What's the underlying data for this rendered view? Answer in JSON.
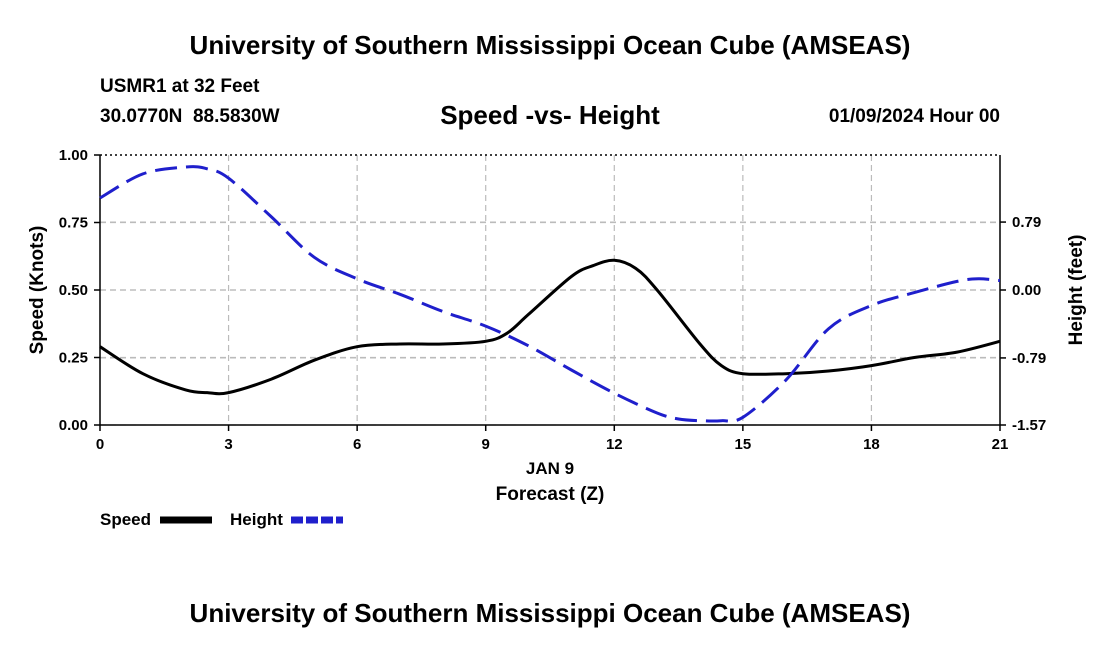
{
  "header": {
    "title": "University of Southern Mississippi Ocean Cube (AMSEAS)",
    "station": "USMR1 at 32 Feet",
    "coords": "30.0770N  88.5830W",
    "subtitle": "Speed -vs- Height",
    "datetime": "01/09/2024 Hour 00"
  },
  "footer": {
    "title": "University of Southern Mississippi Ocean Cube (AMSEAS)"
  },
  "colors": {
    "speed": "#000000",
    "height": "#1f1fcc",
    "grid": "#bbbbbb"
  },
  "chart_data": {
    "type": "line",
    "title": "Speed -vs- Height",
    "xlabel": "Forecast (Z)",
    "xsublabel": "JAN 9",
    "ylabel_left": "Speed (Knots)",
    "ylabel_right": "Height (feet)",
    "xlim": [
      0,
      21
    ],
    "ylim_left": [
      0,
      1
    ],
    "ylim_right": [
      -1.57,
      1.57
    ],
    "x_ticks": [
      0,
      3,
      6,
      9,
      12,
      15,
      18,
      21
    ],
    "x_tick_labels": [
      "0",
      "3",
      "6",
      "9",
      "12",
      "15",
      "18",
      "21"
    ],
    "y_left_ticks": [
      0,
      0.25,
      0.5,
      0.75,
      1.0
    ],
    "y_left_tick_labels": [
      "0.00",
      "0.25",
      "0.50",
      "0.75",
      "1.00"
    ],
    "y_right_ticks": [
      -1.57,
      -0.79,
      0.0,
      0.79
    ],
    "y_right_tick_labels": [
      "-1.57",
      "-0.79",
      "0.00",
      "0.79"
    ],
    "grid": true,
    "legend": [
      "Speed",
      "Height"
    ],
    "series": [
      {
        "name": "Speed",
        "axis": "left",
        "style": "solid",
        "x": [
          0,
          1,
          2,
          2.5,
          3,
          4,
          5,
          6,
          7,
          8,
          9,
          9.5,
          10,
          11,
          11.5,
          12,
          12.5,
          13,
          14,
          14.5,
          15,
          16,
          17,
          18,
          19,
          20,
          21
        ],
        "values": [
          0.29,
          0.19,
          0.13,
          0.12,
          0.12,
          0.17,
          0.24,
          0.29,
          0.3,
          0.3,
          0.31,
          0.34,
          0.41,
          0.55,
          0.59,
          0.61,
          0.58,
          0.5,
          0.3,
          0.22,
          0.19,
          0.19,
          0.2,
          0.22,
          0.25,
          0.27,
          0.31
        ]
      },
      {
        "name": "Height",
        "axis": "right",
        "style": "dashed",
        "x": [
          0,
          1,
          2,
          2.5,
          3,
          4,
          5,
          6,
          7,
          8,
          9,
          10,
          11,
          12,
          13,
          13.5,
          14,
          14.5,
          15,
          16,
          17,
          18,
          19,
          20,
          20.5,
          21
        ],
        "values": [
          1.07,
          1.35,
          1.43,
          1.41,
          1.3,
          0.85,
          0.38,
          0.13,
          -0.05,
          -0.25,
          -0.42,
          -0.65,
          -0.93,
          -1.2,
          -1.43,
          -1.5,
          -1.52,
          -1.52,
          -1.48,
          -1.05,
          -0.45,
          -0.18,
          -0.03,
          0.1,
          0.13,
          0.11
        ]
      }
    ]
  }
}
